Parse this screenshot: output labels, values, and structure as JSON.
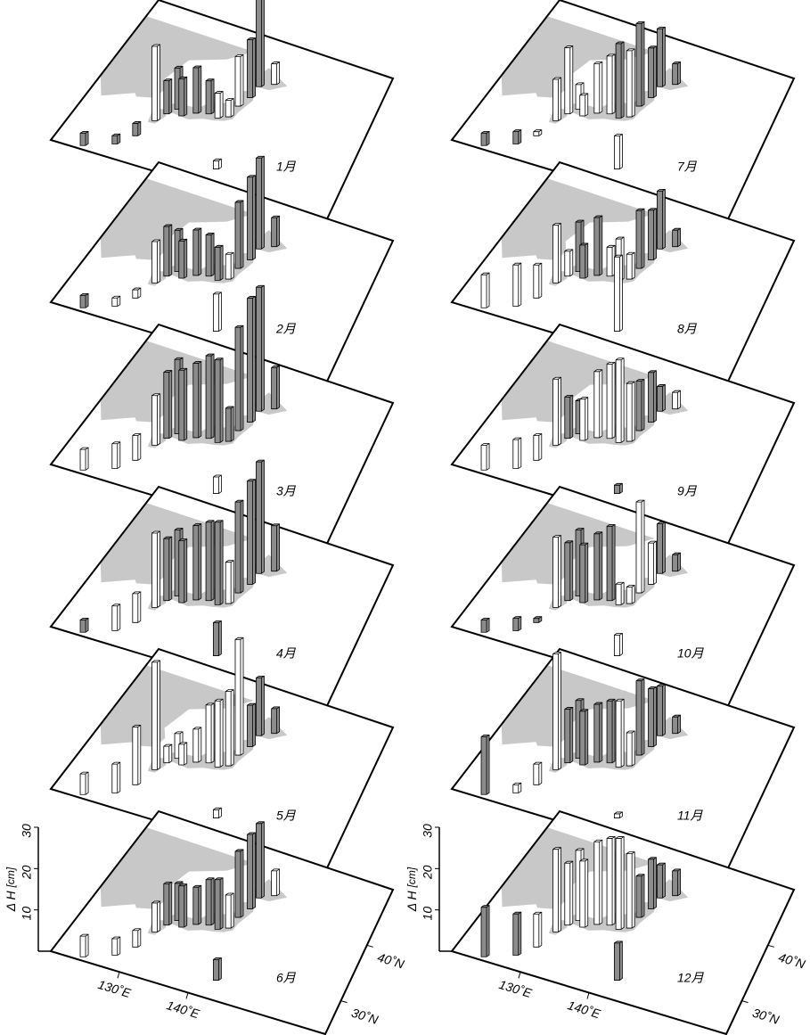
{
  "chart_data": [
    {
      "type": "bar3d",
      "title": "1月",
      "lon": [
        124,
        127.7,
        129.5,
        130.6,
        131.5,
        132.5,
        133.6,
        135.2,
        136.9,
        138.4,
        139.7,
        140.1,
        141,
        141.3,
        143.2,
        142.2
      ],
      "lat": [
        24.5,
        26.2,
        28.4,
        31.6,
        33.2,
        34.4,
        33.6,
        34.7,
        35.2,
        35,
        35.7,
        37.8,
        39.7,
        41.8,
        42.9,
        27.1
      ],
      "values": [
        3,
        2,
        3,
        18,
        8,
        10,
        9,
        11,
        8,
        6,
        4,
        12,
        14,
        23,
        5,
        2
      ],
      "colors": [
        "#8c8c8c",
        "#8c8c8c",
        "#8c8c8c",
        "#ffffff",
        "#8c8c8c",
        "#8c8c8c",
        "#8c8c8c",
        "#8c8c8c",
        "#8c8c8c",
        "#ffffff",
        "#ffffff",
        "#ffffff",
        "#8c8c8c",
        "#8c8c8c",
        "#ffffff",
        "#ffffff"
      ],
      "xlim": [
        120,
        160
      ],
      "ylim": [
        24,
        50
      ],
      "zlim": [
        0,
        30
      ]
    },
    {
      "type": "bar3d",
      "title": "2月",
      "lon": [
        124,
        127.7,
        129.5,
        130.6,
        131.5,
        132.5,
        133.6,
        135.2,
        136.9,
        138.4,
        139.7,
        140.1,
        141,
        141.3,
        143.2,
        142.2
      ],
      "lat": [
        24.5,
        26.2,
        28.4,
        31.6,
        33.2,
        34.4,
        33.6,
        34.7,
        35.2,
        35,
        35.7,
        37.8,
        39.7,
        41.8,
        42.9,
        27.1
      ],
      "values": [
        3,
        2,
        2,
        10,
        12,
        10,
        9,
        11,
        10,
        8,
        6,
        16,
        20,
        22,
        7,
        9
      ],
      "colors": [
        "#8c8c8c",
        "#ffffff",
        "#ffffff",
        "#ffffff",
        "#8c8c8c",
        "#8c8c8c",
        "#8c8c8c",
        "#8c8c8c",
        "#8c8c8c",
        "#8c8c8c",
        "#ffffff",
        "#8c8c8c",
        "#8c8c8c",
        "#8c8c8c",
        "#8c8c8c",
        "#ffffff"
      ],
      "xlim": [
        120,
        160
      ],
      "ylim": [
        24,
        50
      ],
      "zlim": [
        0,
        30
      ]
    },
    {
      "type": "bar3d",
      "title": "3月",
      "lon": [
        124,
        127.7,
        129.5,
        130.6,
        131.5,
        132.5,
        133.6,
        135.2,
        136.9,
        138.4,
        139.7,
        140.1,
        141,
        141.3,
        143.2,
        142.2
      ],
      "lat": [
        24.5,
        26.2,
        28.4,
        31.6,
        33.2,
        34.4,
        33.6,
        34.7,
        35.2,
        35,
        35.7,
        37.8,
        39.7,
        41.8,
        42.9,
        27.1
      ],
      "values": [
        5,
        6,
        6,
        12,
        16,
        18,
        17,
        18,
        20,
        20,
        8,
        25,
        30,
        30,
        10,
        4
      ],
      "colors": [
        "#ffffff",
        "#ffffff",
        "#ffffff",
        "#ffffff",
        "#8c8c8c",
        "#8c8c8c",
        "#8c8c8c",
        "#8c8c8c",
        "#8c8c8c",
        "#8c8c8c",
        "#8c8c8c",
        "#8c8c8c",
        "#8c8c8c",
        "#8c8c8c",
        "#8c8c8c",
        "#ffffff"
      ],
      "xlim": [
        120,
        160
      ],
      "ylim": [
        24,
        50
      ],
      "zlim": [
        0,
        30
      ]
    },
    {
      "type": "bar3d",
      "title": "4月",
      "lon": [
        124,
        127.7,
        129.5,
        130.6,
        131.5,
        132.5,
        133.6,
        135.2,
        136.9,
        138.4,
        139.7,
        140.1,
        141,
        141.3,
        143.2,
        142.2
      ],
      "lat": [
        24.5,
        26.2,
        28.4,
        31.6,
        33.2,
        34.4,
        33.6,
        34.7,
        35.2,
        35,
        35.7,
        37.8,
        39.7,
        41.8,
        42.9,
        27.1
      ],
      "values": [
        3,
        6,
        7,
        18,
        15,
        16,
        15,
        18,
        19,
        20,
        10,
        22,
        25,
        27,
        11,
        8
      ],
      "colors": [
        "#8c8c8c",
        "#ffffff",
        "#ffffff",
        "#ffffff",
        "#8c8c8c",
        "#8c8c8c",
        "#8c8c8c",
        "#8c8c8c",
        "#8c8c8c",
        "#8c8c8c",
        "#ffffff",
        "#8c8c8c",
        "#8c8c8c",
        "#8c8c8c",
        "#8c8c8c",
        "#8c8c8c"
      ],
      "xlim": [
        120,
        160
      ],
      "ylim": [
        24,
        50
      ],
      "zlim": [
        0,
        30
      ]
    },
    {
      "type": "bar3d",
      "title": "5月",
      "lon": [
        124,
        127.7,
        129.5,
        130.6,
        131.5,
        132.5,
        133.6,
        135.2,
        136.9,
        138.4,
        139.7,
        140.1,
        141,
        141.3,
        143.2,
        142.2
      ],
      "lat": [
        24.5,
        26.2,
        28.4,
        31.6,
        33.2,
        34.4,
        33.6,
        34.7,
        35.2,
        35,
        35.7,
        37.8,
        39.7,
        41.8,
        42.9,
        27.1
      ],
      "values": [
        5,
        7,
        14,
        26,
        4,
        6,
        5,
        8,
        14,
        16,
        18,
        28,
        10,
        14,
        6,
        2
      ],
      "colors": [
        "#ffffff",
        "#ffffff",
        "#ffffff",
        "#ffffff",
        "#ffffff",
        "#ffffff",
        "#ffffff",
        "#ffffff",
        "#ffffff",
        "#ffffff",
        "#ffffff",
        "#ffffff",
        "#8c8c8c",
        "#8c8c8c",
        "#8c8c8c",
        "#ffffff"
      ],
      "xlim": [
        120,
        160
      ],
      "ylim": [
        24,
        50
      ],
      "zlim": [
        0,
        30
      ]
    },
    {
      "type": "bar3d",
      "title": "6月",
      "lon": [
        124,
        127.7,
        129.5,
        130.6,
        131.5,
        132.5,
        133.6,
        135.2,
        136.9,
        138.4,
        139.7,
        140.1,
        141,
        141.3,
        143.2,
        142.2
      ],
      "lat": [
        24.5,
        26.2,
        28.4,
        31.6,
        33.2,
        34.4,
        33.6,
        34.7,
        35.2,
        35,
        35.7,
        37.8,
        39.7,
        41.8,
        42.9,
        27.1
      ],
      "values": [
        5,
        4,
        4,
        7,
        10,
        9,
        10,
        9,
        11,
        12,
        8,
        16,
        18,
        18,
        6,
        5
      ],
      "colors": [
        "#ffffff",
        "#ffffff",
        "#ffffff",
        "#ffffff",
        "#8c8c8c",
        "#8c8c8c",
        "#8c8c8c",
        "#8c8c8c",
        "#8c8c8c",
        "#8c8c8c",
        "#ffffff",
        "#8c8c8c",
        "#8c8c8c",
        "#8c8c8c",
        "#ffffff",
        "#8c8c8c"
      ],
      "xlim": [
        120,
        160
      ],
      "ylim": [
        24,
        50
      ],
      "zlim": [
        0,
        30
      ],
      "zticks": [
        10,
        20,
        30
      ],
      "zlabel": "Δ H",
      "zunit": "[cm]",
      "xticks": [
        {
          "value": 130,
          "label": "130˚E"
        },
        {
          "value": 140,
          "label": "140˚E"
        }
      ],
      "yticks": [
        {
          "value": 30,
          "label": "30˚N"
        },
        {
          "value": 40,
          "label": "40˚N"
        }
      ]
    },
    {
      "type": "bar3d",
      "title": "7月",
      "lon": [
        124,
        127.7,
        129.5,
        130.6,
        131.5,
        132.5,
        133.6,
        135.2,
        136.9,
        138.4,
        139.7,
        140.1,
        141,
        141.3,
        143.2,
        142.2
      ],
      "lat": [
        24.5,
        26.2,
        28.4,
        31.6,
        33.2,
        34.4,
        33.6,
        34.7,
        35.2,
        35,
        35.7,
        37.8,
        39.7,
        41.8,
        42.9,
        27.1
      ],
      "values": [
        3,
        3,
        1,
        10,
        16,
        6,
        5,
        12,
        14,
        18,
        16,
        20,
        12,
        14,
        5,
        8
      ],
      "colors": [
        "#8c8c8c",
        "#8c8c8c",
        "#ffffff",
        "#ffffff",
        "#ffffff",
        "#ffffff",
        "#ffffff",
        "#ffffff",
        "#ffffff",
        "#8c8c8c",
        "#ffffff",
        "#8c8c8c",
        "#8c8c8c",
        "#8c8c8c",
        "#8c8c8c",
        "#ffffff"
      ],
      "xlim": [
        120,
        160
      ],
      "ylim": [
        24,
        50
      ],
      "zlim": [
        0,
        30
      ]
    },
    {
      "type": "bar3d",
      "title": "8月",
      "lon": [
        124,
        127.7,
        129.5,
        130.6,
        131.5,
        132.5,
        133.6,
        135.2,
        136.9,
        138.4,
        139.7,
        140.1,
        141,
        141.3,
        143.2,
        142.2
      ],
      "lat": [
        24.5,
        26.2,
        28.4,
        31.6,
        33.2,
        34.4,
        33.6,
        34.7,
        35.2,
        35,
        35.7,
        37.8,
        39.7,
        41.8,
        42.9,
        27.1
      ],
      "values": [
        8,
        10,
        8,
        14,
        6,
        12,
        8,
        14,
        7,
        10,
        6,
        14,
        12,
        14,
        4,
        18
      ],
      "colors": [
        "#ffffff",
        "#ffffff",
        "#ffffff",
        "#ffffff",
        "#ffffff",
        "#8c8c8c",
        "#8c8c8c",
        "#8c8c8c",
        "#ffffff",
        "#ffffff",
        "#ffffff",
        "#8c8c8c",
        "#8c8c8c",
        "#8c8c8c",
        "#8c8c8c",
        "#ffffff"
      ],
      "xlim": [
        120,
        160
      ],
      "ylim": [
        24,
        50
      ],
      "zlim": [
        0,
        30
      ]
    },
    {
      "type": "bar3d",
      "title": "9月",
      "lon": [
        124,
        127.7,
        129.5,
        130.6,
        131.5,
        132.5,
        133.6,
        135.2,
        136.9,
        138.4,
        139.7,
        140.1,
        141,
        141.3,
        143.2,
        142.2
      ],
      "lat": [
        24.5,
        26.2,
        28.4,
        31.6,
        33.2,
        34.4,
        33.6,
        34.7,
        35.2,
        35,
        35.7,
        37.8,
        39.7,
        41.8,
        42.9,
        27.1
      ],
      "values": [
        6,
        7,
        6,
        16,
        10,
        8,
        10,
        16,
        18,
        20,
        14,
        12,
        12,
        6,
        4,
        2
      ],
      "colors": [
        "#ffffff",
        "#ffffff",
        "#ffffff",
        "#ffffff",
        "#8c8c8c",
        "#8c8c8c",
        "#ffffff",
        "#ffffff",
        "#ffffff",
        "#ffffff",
        "#ffffff",
        "#8c8c8c",
        "#8c8c8c",
        "#8c8c8c",
        "#ffffff",
        "#8c8c8c"
      ],
      "xlim": [
        120,
        160
      ],
      "ylim": [
        24,
        50
      ],
      "zlim": [
        0,
        30
      ]
    },
    {
      "type": "bar3d",
      "title": "10月",
      "lon": [
        124,
        127.7,
        129.5,
        130.6,
        131.5,
        132.5,
        133.6,
        135.2,
        136.9,
        138.4,
        139.7,
        140.1,
        141,
        141.3,
        143.2,
        142.2
      ],
      "lat": [
        24.5,
        26.2,
        28.4,
        31.6,
        33.2,
        34.4,
        33.6,
        34.7,
        35.2,
        35,
        35.7,
        37.8,
        39.7,
        41.8,
        42.9,
        27.1
      ],
      "values": [
        3,
        3,
        1,
        17,
        14,
        16,
        14,
        16,
        18,
        5,
        4,
        22,
        10,
        12,
        4,
        5
      ],
      "colors": [
        "#8c8c8c",
        "#8c8c8c",
        "#8c8c8c",
        "#ffffff",
        "#8c8c8c",
        "#8c8c8c",
        "#8c8c8c",
        "#8c8c8c",
        "#8c8c8c",
        "#ffffff",
        "#ffffff",
        "#ffffff",
        "#ffffff",
        "#8c8c8c",
        "#8c8c8c",
        "#ffffff"
      ],
      "xlim": [
        120,
        160
      ],
      "ylim": [
        24,
        50
      ],
      "zlim": [
        0,
        30
      ]
    },
    {
      "type": "bar3d",
      "title": "11月",
      "lon": [
        124,
        127.7,
        129.5,
        130.6,
        131.5,
        132.5,
        133.6,
        135.2,
        136.9,
        138.4,
        139.7,
        140.1,
        141,
        141.3,
        143.2,
        142.2
      ],
      "lat": [
        24.5,
        26.2,
        28.4,
        31.6,
        33.2,
        34.4,
        33.6,
        34.7,
        35.2,
        35,
        35.7,
        37.8,
        39.7,
        41.8,
        42.9,
        27.1
      ],
      "values": [
        14,
        2,
        5,
        28,
        13,
        14,
        13,
        14,
        15,
        16,
        8,
        18,
        14,
        12,
        4,
        1
      ],
      "colors": [
        "#8c8c8c",
        "#ffffff",
        "#ffffff",
        "#ffffff",
        "#8c8c8c",
        "#8c8c8c",
        "#8c8c8c",
        "#8c8c8c",
        "#8c8c8c",
        "#ffffff",
        "#ffffff",
        "#8c8c8c",
        "#8c8c8c",
        "#8c8c8c",
        "#8c8c8c",
        "#ffffff"
      ],
      "xlim": [
        120,
        160
      ],
      "ylim": [
        24,
        50
      ],
      "zlim": [
        0,
        30
      ]
    },
    {
      "type": "bar3d",
      "title": "12月",
      "lon": [
        124,
        127.7,
        129.5,
        130.6,
        131.5,
        132.5,
        133.6,
        135.2,
        136.9,
        138.4,
        139.7,
        140.1,
        141,
        141.3,
        143.2,
        142.2
      ],
      "lat": [
        24.5,
        26.2,
        28.4,
        31.6,
        33.2,
        34.4,
        33.6,
        34.7,
        35.2,
        35,
        35.7,
        37.8,
        39.7,
        41.8,
        42.9,
        27.1
      ],
      "values": [
        12,
        10,
        8,
        20,
        15,
        17,
        16,
        20,
        21,
        22,
        18,
        10,
        12,
        8,
        6,
        9
      ],
      "colors": [
        "#8c8c8c",
        "#8c8c8c",
        "#ffffff",
        "#ffffff",
        "#ffffff",
        "#ffffff",
        "#ffffff",
        "#ffffff",
        "#ffffff",
        "#ffffff",
        "#ffffff",
        "#8c8c8c",
        "#8c8c8c",
        "#8c8c8c",
        "#8c8c8c",
        "#8c8c8c"
      ],
      "xlim": [
        120,
        160
      ],
      "ylim": [
        24,
        50
      ],
      "zlim": [
        0,
        30
      ],
      "zticks": [
        10,
        20,
        30
      ],
      "zlabel": "Δ H",
      "zunit": "[cm]",
      "xticks": [
        {
          "value": 130,
          "label": "130˚E"
        },
        {
          "value": 140,
          "label": "140˚E"
        }
      ],
      "yticks": [
        {
          "value": 30,
          "label": "30˚N"
        },
        {
          "value": 40,
          "label": "40˚N"
        }
      ]
    }
  ]
}
